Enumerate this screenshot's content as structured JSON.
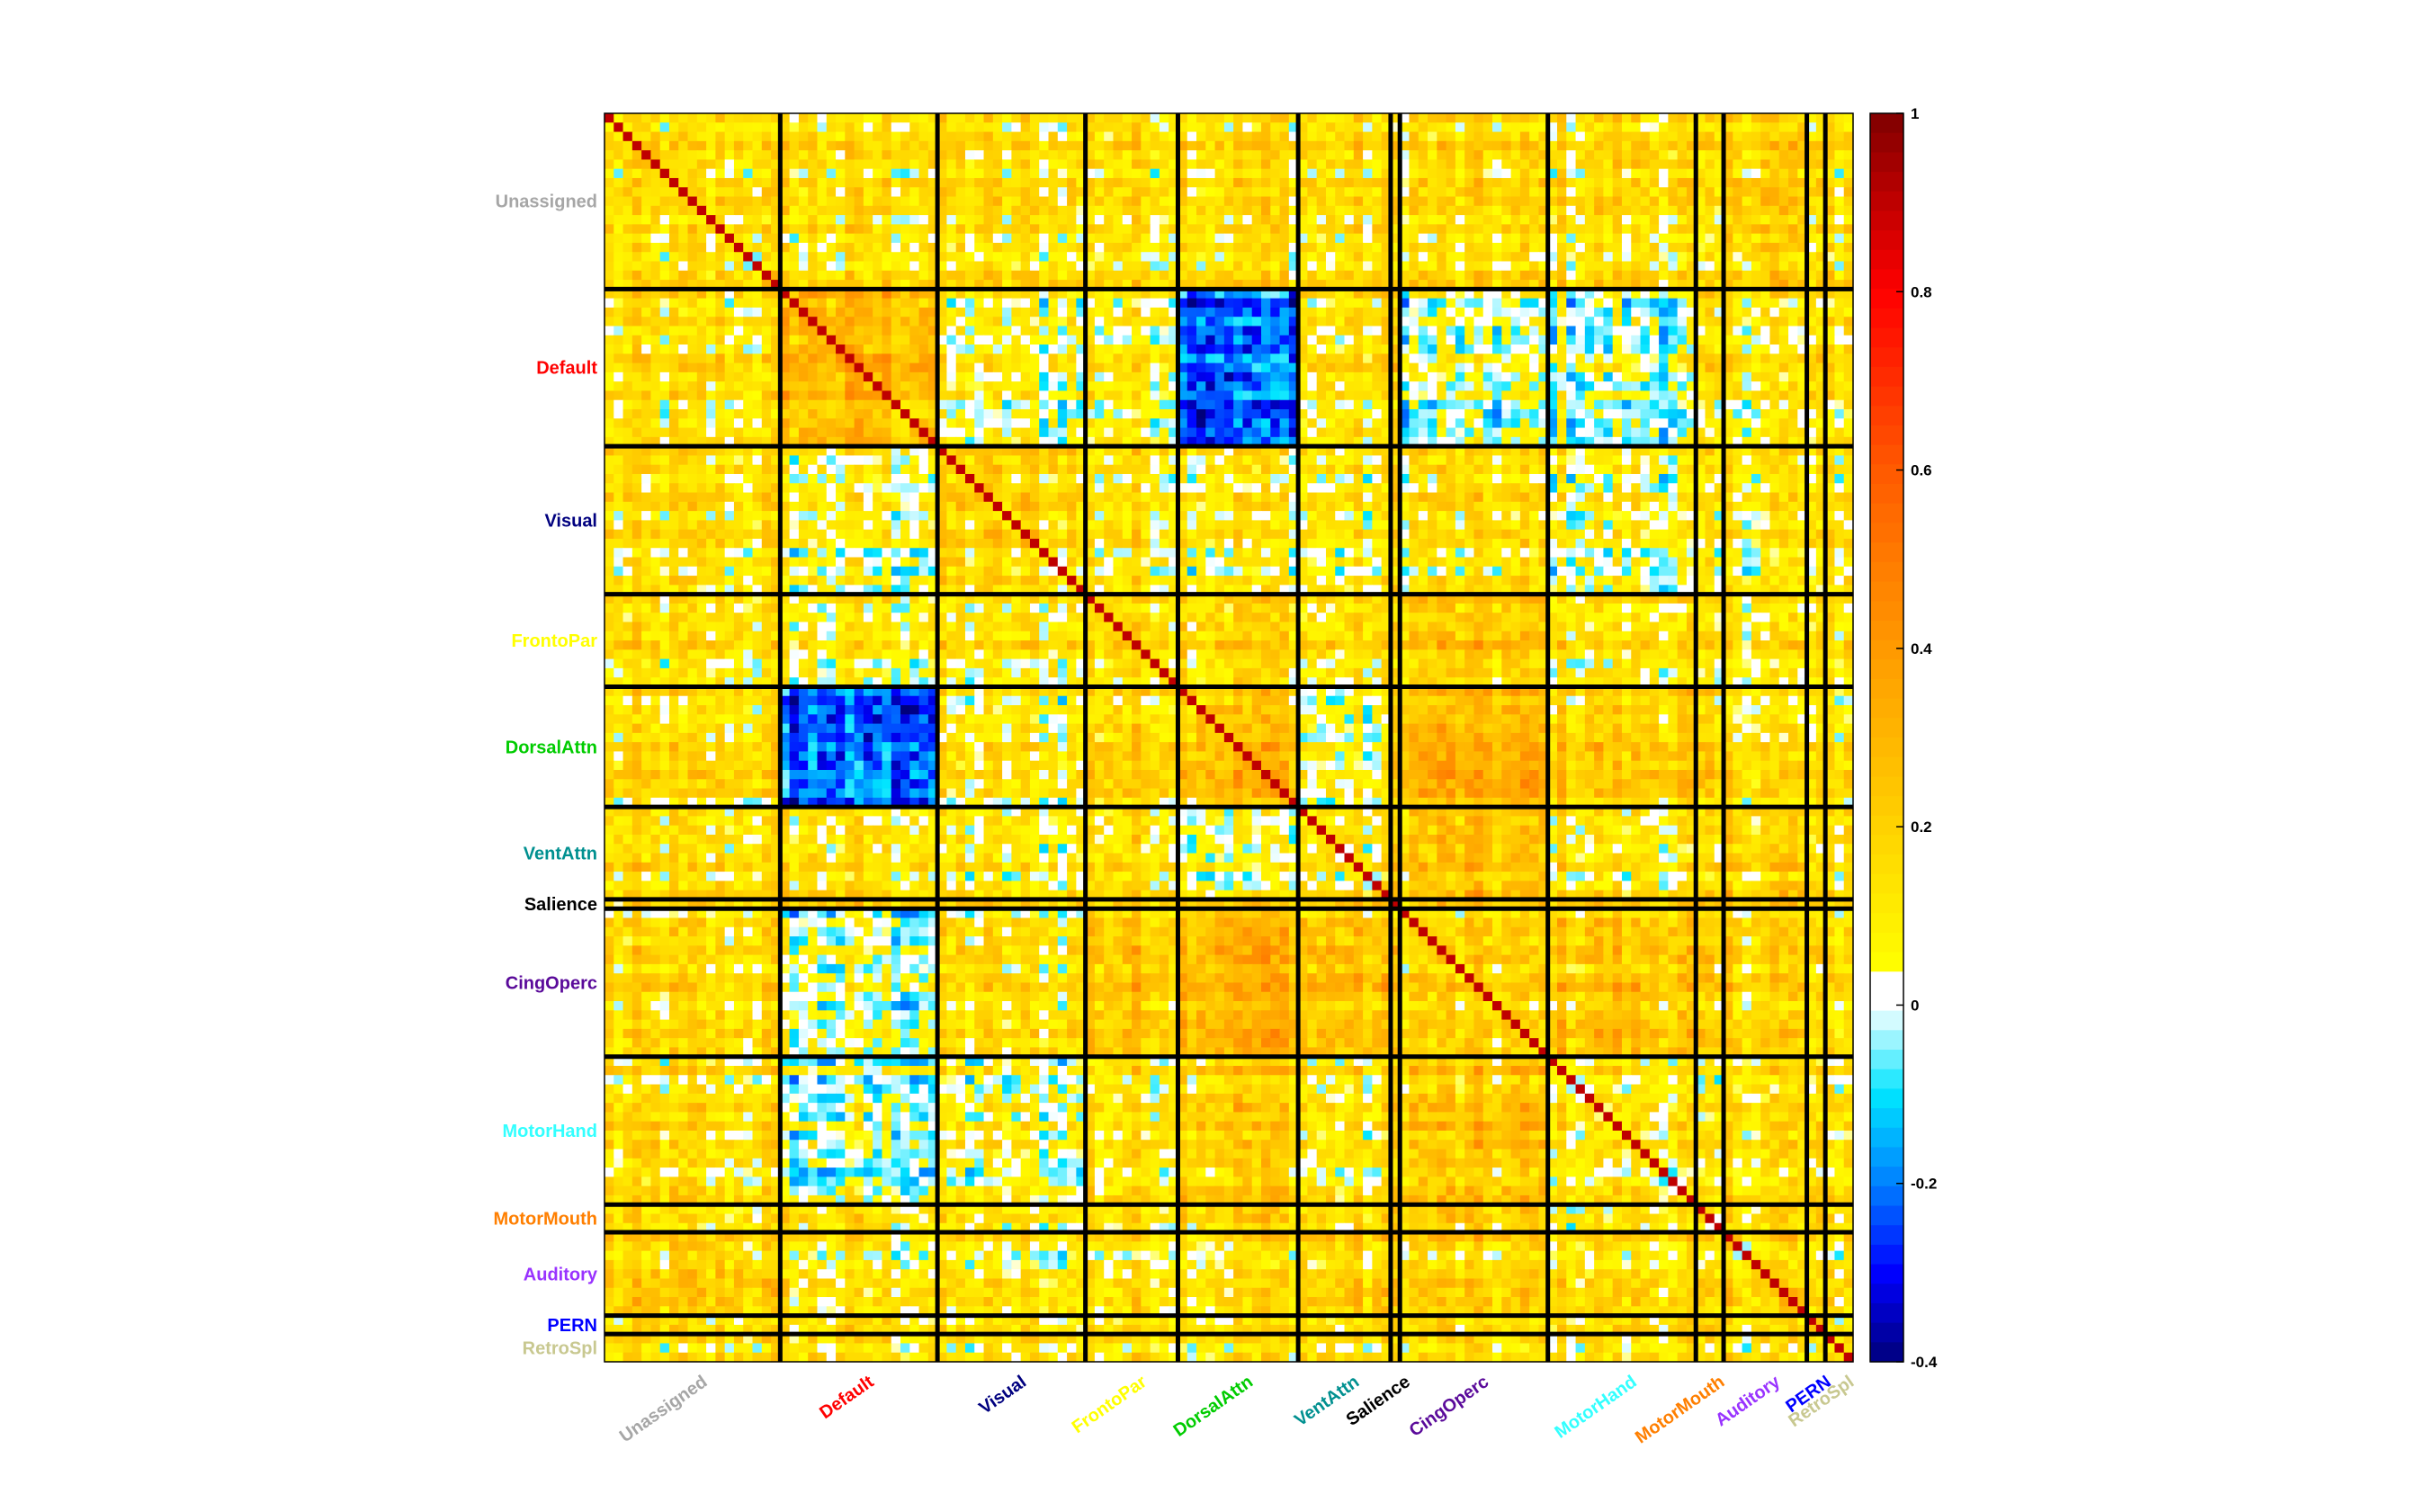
{
  "chart_data": {
    "type": "heatmap",
    "title": "",
    "xlabel": "",
    "ylabel": "",
    "networks": [
      {
        "name": "Unassigned",
        "color": "#a6a6a6",
        "size": 19
      },
      {
        "name": "Default",
        "color": "#ff0000",
        "size": 17
      },
      {
        "name": "Visual",
        "color": "#00007f",
        "size": 16
      },
      {
        "name": "FrontoPar",
        "color": "#ffff00",
        "size": 10
      },
      {
        "name": "DorsalAttn",
        "color": "#00cc00",
        "size": 13
      },
      {
        "name": "VentAttn",
        "color": "#009090",
        "size": 10
      },
      {
        "name": "Salience",
        "color": "#000000",
        "size": 1
      },
      {
        "name": "CingOperc",
        "color": "#5a0a9a",
        "size": 16
      },
      {
        "name": "MotorHand",
        "color": "#33ffff",
        "size": 16
      },
      {
        "name": "MotorMouth",
        "color": "#ff7f00",
        "size": 3
      },
      {
        "name": "Auditory",
        "color": "#9933ff",
        "size": 9
      },
      {
        "name": "PERN",
        "color": "#0000ff",
        "size": 2
      },
      {
        "name": "RetroSpl",
        "color": "#c8c890",
        "size": 3
      }
    ],
    "block_means": [
      [
        0.12,
        0.12,
        0.12,
        0.14,
        0.14,
        0.12,
        0.15,
        0.14,
        0.14,
        0.08,
        0.2,
        0.08,
        0.14
      ],
      [
        0.12,
        0.28,
        0.05,
        0.1,
        -0.22,
        0.12,
        0.2,
        0.0,
        0.0,
        0.08,
        0.12,
        0.1,
        0.15
      ],
      [
        0.12,
        0.05,
        0.16,
        0.12,
        0.1,
        0.08,
        0.2,
        0.12,
        0.05,
        0.05,
        0.1,
        0.08,
        0.12
      ],
      [
        0.14,
        0.1,
        0.12,
        0.16,
        0.2,
        0.14,
        0.22,
        0.22,
        0.14,
        0.1,
        0.14,
        0.1,
        0.14
      ],
      [
        0.14,
        -0.22,
        0.1,
        0.2,
        0.28,
        0.05,
        0.22,
        0.3,
        0.22,
        0.14,
        0.15,
        0.12,
        0.14
      ],
      [
        0.12,
        0.12,
        0.08,
        0.14,
        0.05,
        0.1,
        0.2,
        0.22,
        0.1,
        0.1,
        0.18,
        0.08,
        0.14
      ],
      [
        0.15,
        0.2,
        0.2,
        0.22,
        0.22,
        0.2,
        0.25,
        0.22,
        0.2,
        0.15,
        0.2,
        0.15,
        0.15
      ],
      [
        0.14,
        0.0,
        0.12,
        0.22,
        0.3,
        0.22,
        0.22,
        0.16,
        0.22,
        0.14,
        0.18,
        0.1,
        0.14
      ],
      [
        0.14,
        0.0,
        0.05,
        0.14,
        0.22,
        0.1,
        0.2,
        0.22,
        0.12,
        0.05,
        0.15,
        0.1,
        0.14
      ],
      [
        0.08,
        0.08,
        0.05,
        0.1,
        0.14,
        0.1,
        0.15,
        0.14,
        0.05,
        0.0,
        0.1,
        0.08,
        0.1
      ],
      [
        0.2,
        0.12,
        0.1,
        0.14,
        0.15,
        0.18,
        0.2,
        0.18,
        0.15,
        0.1,
        0.18,
        0.1,
        0.15
      ],
      [
        0.08,
        0.1,
        0.08,
        0.1,
        0.12,
        0.08,
        0.15,
        0.1,
        0.1,
        0.08,
        0.1,
        0.12,
        0.1
      ],
      [
        0.14,
        0.15,
        0.12,
        0.14,
        0.14,
        0.14,
        0.15,
        0.14,
        0.14,
        0.1,
        0.15,
        0.1,
        0.16
      ]
    ],
    "colorbar": {
      "min": -0.4,
      "max": 1,
      "ticks": [
        "1",
        "0.8",
        "0.6",
        "0.4",
        "0.2",
        "0",
        "-0.2",
        "-0.4"
      ],
      "colormap_stops": [
        {
          "value": -0.4,
          "color": "#00007a"
        },
        {
          "value": -0.3,
          "color": "#0000ff"
        },
        {
          "value": -0.2,
          "color": "#0080ff"
        },
        {
          "value": -0.1,
          "color": "#00e5ff"
        },
        {
          "value": 0.0,
          "color": "#ffffff"
        },
        {
          "value": 0.03,
          "color": "#ffffff"
        },
        {
          "value": 0.04,
          "color": "#ffff00"
        },
        {
          "value": 0.2,
          "color": "#ffd200"
        },
        {
          "value": 0.4,
          "color": "#ff9a00"
        },
        {
          "value": 0.6,
          "color": "#ff5a00"
        },
        {
          "value": 0.8,
          "color": "#ff0000"
        },
        {
          "value": 1.0,
          "color": "#7f0000"
        }
      ]
    }
  }
}
